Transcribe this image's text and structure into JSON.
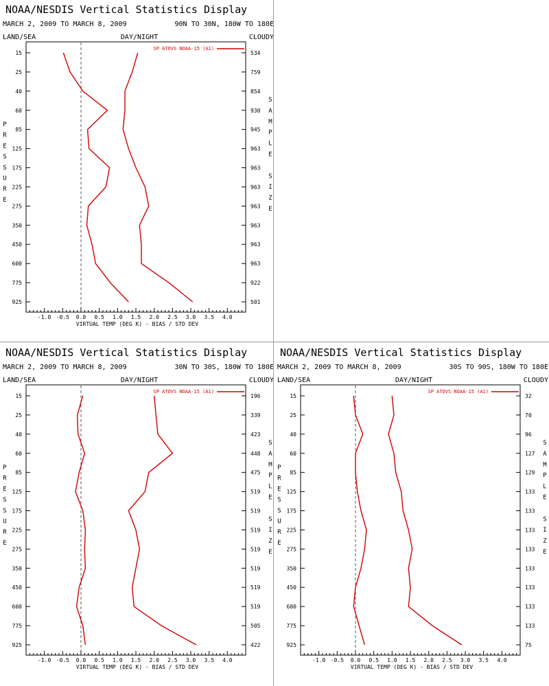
{
  "chart_data": [
    {
      "type": "line",
      "title": "NOAA/NESDIS Vertical Statistics Display",
      "date_range": "MARCH 2, 2009 TO MARCH 8, 2009",
      "region": "90N TO 30N, 180W TO 180E",
      "land_sea": "LAND/SEA",
      "day_night": "DAY/NIGHT",
      "cloudy": "CLOUDY",
      "xlabel": "VIRTUAL TEMP (DEG K) - BIAS / STD DEV",
      "ylabel": "PRESSURE",
      "right_label": "SAMPLE SIZE",
      "xlim": [
        -1.5,
        4.5
      ],
      "x_ticks": [
        "-1.0",
        "-0.5",
        "0.0",
        "0.5",
        "1.0",
        "1.5",
        "2.0",
        "2.5",
        "3.0",
        "3.5",
        "4.0"
      ],
      "pressure_levels": [
        "15",
        "25",
        "40",
        "60",
        "85",
        "125",
        "175",
        "225",
        "275",
        "350",
        "450",
        "600",
        "775",
        "925"
      ],
      "sample_size": [
        "534",
        "759",
        "854",
        "930",
        "945",
        "963",
        "963",
        "963",
        "963",
        "963",
        "963",
        "963",
        "922",
        "501"
      ],
      "series": [
        {
          "name": "SP ATOVS NOAA-15 (A1)",
          "values": [
            -0.48,
            -0.3,
            0.05,
            0.72,
            0.18,
            0.22,
            0.78,
            0.68,
            0.2,
            0.16,
            0.3,
            0.4,
            0.8,
            1.3
          ]
        },
        {
          "values": [
            1.55,
            1.4,
            1.2,
            1.2,
            1.15,
            1.3,
            1.5,
            1.75,
            1.85,
            1.6,
            1.65,
            1.65,
            2.4,
            3.05
          ]
        }
      ]
    },
    {
      "type": "line",
      "title": "NOAA/NESDIS Vertical Statistics Display",
      "date_range": "MARCH 2, 2009 TO MARCH 8, 2009",
      "region": "30N TO 30S, 180W TO 180E",
      "land_sea": "LAND/SEA",
      "day_night": "DAY/NIGHT",
      "cloudy": "CLOUDY",
      "xlabel": "VIRTUAL TEMP (DEG K) - BIAS / STD DEV",
      "ylabel": "PRESSURE",
      "right_label": "SAMPLE SIZE",
      "xlim": [
        -1.5,
        4.5
      ],
      "x_ticks": [
        "-1.0",
        "-0.5",
        "0.0",
        "0.5",
        "1.0",
        "1.5",
        "2.0",
        "2.5",
        "3.0",
        "3.5",
        "4.0"
      ],
      "pressure_levels": [
        "15",
        "25",
        "40",
        "60",
        "85",
        "125",
        "175",
        "225",
        "275",
        "350",
        "450",
        "600",
        "775",
        "925"
      ],
      "sample_size": [
        "196",
        "339",
        "423",
        "448",
        "475",
        "519",
        "519",
        "519",
        "519",
        "519",
        "519",
        "519",
        "505",
        "422"
      ],
      "series": [
        {
          "name": "SP ATOVS NOAA-15 (A1)",
          "values": [
            0.05,
            -0.1,
            -0.08,
            0.1,
            -0.05,
            -0.15,
            0.05,
            0.12,
            0.1,
            0.12,
            -0.05,
            -0.12,
            0.05,
            0.12
          ]
        },
        {
          "values": [
            2.0,
            2.05,
            2.1,
            2.5,
            1.85,
            1.75,
            1.3,
            1.5,
            1.6,
            1.5,
            1.4,
            1.45,
            2.2,
            3.15
          ]
        }
      ]
    },
    {
      "type": "line",
      "title": "NOAA/NESDIS Vertical Statistics Display",
      "date_range": "MARCH 2, 2009 TO MARCH 8, 2009",
      "region": "30S TO 90S, 180W TO 180E",
      "land_sea": "LAND/SEA",
      "day_night": "DAY/NIGHT",
      "cloudy": "CLOUDY",
      "xlabel": "VIRTUAL TEMP (DEG K) - BIAS / STD DEV",
      "ylabel": "PRESSURE",
      "right_label": "SAMPLE SIZE",
      "xlim": [
        -1.5,
        4.5
      ],
      "x_ticks": [
        "-1.0",
        "-0.5",
        "0.0",
        "0.5",
        "1.0",
        "1.5",
        "2.0",
        "2.5",
        "3.0",
        "3.5",
        "4.0"
      ],
      "pressure_levels": [
        "15",
        "25",
        "40",
        "60",
        "85",
        "125",
        "175",
        "225",
        "275",
        "350",
        "450",
        "600",
        "775",
        "925"
      ],
      "sample_size": [
        "32",
        "70",
        "96",
        "127",
        "129",
        "133",
        "133",
        "133",
        "133",
        "133",
        "133",
        "133",
        "133",
        "75"
      ],
      "series": [
        {
          "name": "SP ATOVS NOAA-15 (A1)",
          "values": [
            -0.05,
            0.0,
            0.2,
            0.0,
            0.0,
            0.05,
            0.15,
            0.3,
            0.25,
            0.15,
            0.0,
            -0.05,
            0.1,
            0.25
          ]
        },
        {
          "values": [
            1.0,
            1.05,
            0.9,
            1.05,
            1.1,
            1.25,
            1.3,
            1.45,
            1.55,
            1.45,
            1.5,
            1.45,
            2.1,
            2.9
          ]
        }
      ]
    }
  ]
}
